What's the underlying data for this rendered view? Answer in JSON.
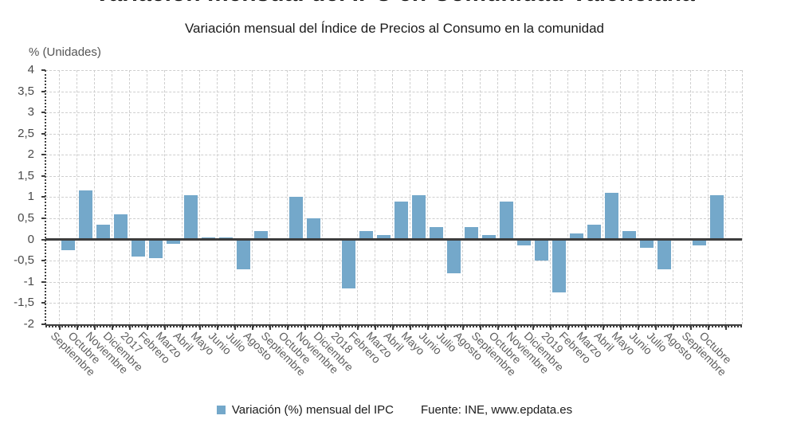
{
  "title": "Variación mensual del IPC en Comunidad Valenciana",
  "subtitle": "Variación mensual del Índice de Precios al Consumo en la comunidad",
  "y_axis_unit_label": "% (Unidades)",
  "legend": {
    "series_label": "Variación (%) mensual del IPC",
    "source": "Fuente: INE, www.epdata.es"
  },
  "colors": {
    "bar": "#74a8ca",
    "zero_line": "#3d3d3d",
    "grid": "#cfcfcf",
    "axis": "#3f3f3f",
    "tick_label": "#4a4a4a",
    "x_label": "#5f5f5f"
  },
  "chart_data": {
    "type": "bar",
    "title": "Variación mensual del IPC en Comunidad Valenciana",
    "subtitle": "Variación mensual del Índice de Precios al Consumo en la comunidad",
    "xlabel": "",
    "ylabel": "% (Unidades)",
    "ylim": [
      -2,
      4
    ],
    "ytick_step": 0.5,
    "grid": true,
    "legend_position": "bottom",
    "series_name": "Variación (%) mensual del IPC",
    "source": "Fuente: INE, www.epdata.es",
    "y_tick_labels": [
      "4",
      "3,5",
      "3",
      "2,5",
      "2",
      "1,5",
      "1",
      "0,5",
      "0",
      "-0,5",
      "-1",
      "-1,5",
      "-2"
    ],
    "categories": [
      "Septiembre",
      "Octubre",
      "Noviembre",
      "Diciembre",
      "2017",
      "Febrero",
      "Marzo",
      "Abril",
      "Mayo",
      "Junio",
      "Julio",
      "Agosto",
      "Septiembre",
      "Octubre",
      "Noviembre",
      "Diciembre",
      "2018",
      "Febrero",
      "Marzo",
      "Abril",
      "Mayo",
      "Junio",
      "Julio",
      "Agosto",
      "Septiembre",
      "Octubre",
      "Noviembre",
      "Diciembre",
      "2019",
      "Febrero",
      "Marzo",
      "Abril",
      "Mayo",
      "Junio",
      "Julio",
      "Agosto",
      "Septiembre",
      "Octubre"
    ],
    "values": [
      -0.25,
      1.15,
      0.35,
      0.6,
      -0.4,
      -0.45,
      -0.1,
      1.05,
      0.05,
      0.05,
      -0.7,
      0.2,
      0,
      1.0,
      0.5,
      0,
      -1.15,
      0.2,
      0.1,
      0.9,
      1.05,
      0.3,
      -0.8,
      0.3,
      0.1,
      0.9,
      -0.15,
      -0.5,
      -1.25,
      0.15,
      0.35,
      1.1,
      0.2,
      -0.2,
      -0.7,
      0,
      -0.15,
      1.05
    ]
  }
}
